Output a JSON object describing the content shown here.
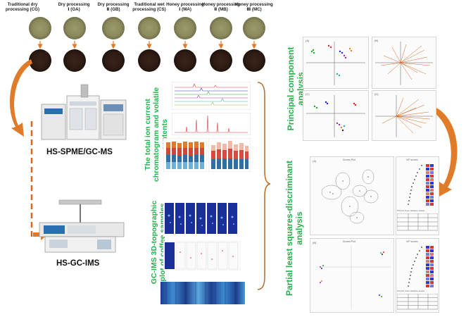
{
  "samples": [
    {
      "line1": "Traditional dry",
      "line2": "processing (CG)"
    },
    {
      "line1": "Dry processing",
      "line2": "Ⅰ (GA)"
    },
    {
      "line1": "Dry processing",
      "line2": "Ⅱ (GB)"
    },
    {
      "line1": "Traditional wet",
      "line2": "processing (CS)"
    },
    {
      "line1": "Honey processing",
      "line2": "Ⅰ (MA)"
    },
    {
      "line1": "Honey processing",
      "line2": "Ⅱ (MB)"
    },
    {
      "line1": "Honey processing",
      "line2": "Ⅲ (MC)"
    }
  ],
  "instruments": {
    "hs_spme": "HS-SPME/GC-MS",
    "hs_gc": "HS-GC-IMS"
  },
  "sections": {
    "tic_l1": "The total ion current",
    "tic_l2": "chromatogram and volatile",
    "tic_l3": "contents",
    "gcims_l1": "GC-IMS 3D-topographic",
    "gcims_l2": "plot of coffee samples",
    "pca_l1": "Principal component",
    "pca_l2": "analysis",
    "pls_l1": "Partial least squares-discriminant",
    "pls_l2": "analysis"
  },
  "panels": {
    "pca_a": "(A)",
    "pca_b": "(B)",
    "pca_c": "(C)",
    "pca_d": "(D)",
    "pls_a": "(A)",
    "pls_b": "(B)",
    "score_plot": "Scores Plot",
    "vip_scores": "VIP scores",
    "cv_title": "PLS-DA cross validation details"
  },
  "colors": {
    "title_green": "#22b14c",
    "arrow_orange": "#e07b2a",
    "dash_orange": "#d9641e",
    "brace": "#b87333"
  }
}
